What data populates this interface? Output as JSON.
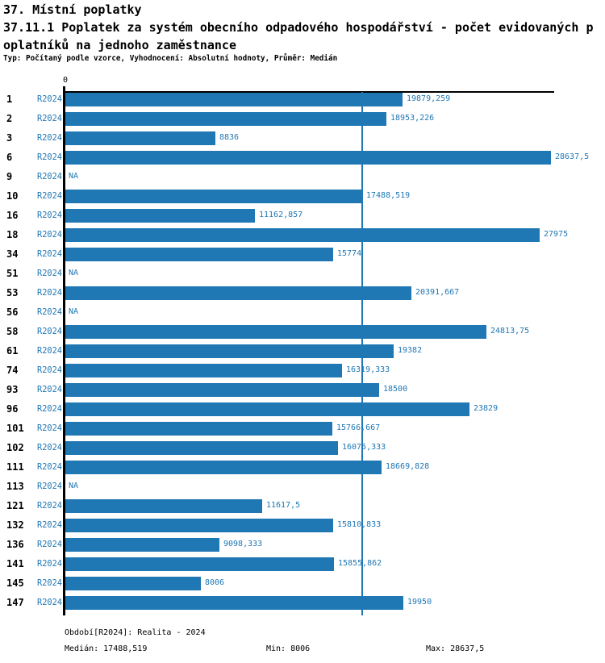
{
  "page": {
    "title_line1": "37. Místní poplatky",
    "title_line2": "37.11.1 Poplatek za systém obecního odpadového hospodářství - počet evidovaných p",
    "title_line3": "oplatníků na jednoho zaměstnance",
    "subtitle": "Typ: Počítaný podle vzorce, Vyhodnocení: Absolutní hodnoty, Průměr: Medián"
  },
  "chart_data": {
    "type": "bar",
    "orientation": "horizontal",
    "series_name": "R2024",
    "categories": [
      "1",
      "2",
      "3",
      "6",
      "9",
      "10",
      "16",
      "18",
      "34",
      "51",
      "53",
      "56",
      "58",
      "61",
      "74",
      "93",
      "96",
      "101",
      "102",
      "111",
      "113",
      "121",
      "132",
      "136",
      "141",
      "145",
      "147"
    ],
    "series": [
      {
        "name": "R2024",
        "values": [
          19879.259,
          18953.226,
          8836,
          28637.5,
          null,
          17488.519,
          11162.857,
          27975,
          15774,
          null,
          20391.667,
          null,
          24813.75,
          19382,
          16319.333,
          18500,
          23829,
          15766.667,
          16075.333,
          18669.828,
          null,
          11617.5,
          15810.833,
          9098.333,
          15855.862,
          8006,
          19950
        ],
        "value_labels": [
          "19879,259",
          "18953,226",
          "8836",
          "28637,5",
          "NA",
          "17488,519",
          "11162,857",
          "27975",
          "15774",
          "NA",
          "20391,667",
          "NA",
          "24813,75",
          "19382",
          "16319,333",
          "18500",
          "23829",
          "15766,667",
          "16075,333",
          "18669,828",
          "NA",
          "11617,5",
          "15810,833",
          "9098,333",
          "15855,862",
          "8006",
          "19950"
        ]
      }
    ],
    "na_label": "NA",
    "x_axis": {
      "zero_label": "0",
      "min": 0,
      "max": 28637.5
    },
    "reference_line": {
      "type": "median",
      "value": 17488.519
    },
    "summary": {
      "median": 17488.519,
      "min": 8006,
      "max": 28637.5
    },
    "legend_position": "none",
    "grid": false,
    "bar_color": "#1f77b4"
  },
  "footer": {
    "period_label": "Období[R2024]: Realita - 2024",
    "median_label": "Medián: 17488,519",
    "min_label": "Min: 8006",
    "max_label": "Max: 28637,5"
  },
  "colors": {
    "accent": "#1f77b4",
    "text": "#000000",
    "background": "#ffffff"
  }
}
